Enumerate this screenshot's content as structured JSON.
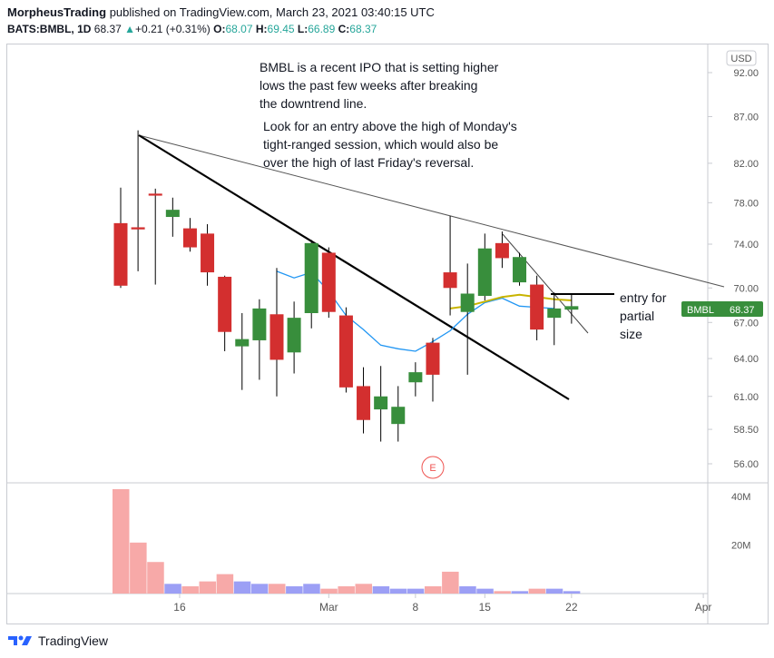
{
  "header": {
    "author": "MorpheusTrading",
    "published_text": "published on TradingView.com, March 23, 2021 03:40:15 UTC",
    "symbol": "BATS:BMBL, 1D",
    "last": "68.37",
    "change_arrow": "▲",
    "change": "+0.21 (+0.31%)",
    "o_label": "O:",
    "o_value": "68.07",
    "h_label": "H:",
    "h_value": "69.45",
    "l_label": "L:",
    "l_value": "66.89",
    "c_label": "C:",
    "c_value": "68.37"
  },
  "footer": {
    "brand": "TradingView"
  },
  "colors": {
    "up": "#388e3c",
    "down": "#d32f2f",
    "vol_up": "#9c9ff5",
    "vol_down": "#f7a9a8",
    "ma_fast": "#2196f3",
    "ma_slow": "#c8b400",
    "price_tag": "#388e3c"
  },
  "annotations": {
    "note1": [
      "BMBL is a recent IPO that is setting higher",
      "lows the past few weeks after breaking",
      "the downtrend line."
    ],
    "note2": [
      "Look for an entry above the high of Monday's",
      "tight-ranged session, which would also be",
      "over the high of last Friday's reversal."
    ],
    "entry": [
      "entry for",
      "partial",
      "size"
    ],
    "earnings_marker": "E"
  },
  "chart_data": {
    "type": "candlestick",
    "currency": "USD",
    "price_axis_ticks": [
      "92.00",
      "87.00",
      "82.00",
      "78.00",
      "74.00",
      "70.00",
      "67.00",
      "64.00",
      "61.00",
      "58.50",
      "56.00"
    ],
    "volume_axis_ticks": [
      "40M",
      "20M"
    ],
    "x_tick_labels": [
      "16",
      "Mar",
      "8",
      "15",
      "22",
      "Apr"
    ],
    "last_price_label": "BMBL",
    "last_price": "68.37",
    "candles": [
      {
        "date": "2021-02-11",
        "o": 76.0,
        "h": 79.5,
        "l": 70.0,
        "c": 70.2,
        "v": 43
      },
      {
        "date": "2021-02-12",
        "o": 75.6,
        "h": 85.5,
        "l": 71.5,
        "c": 75.4,
        "v": 21
      },
      {
        "date": "2021-02-16",
        "o": 78.9,
        "h": 79.4,
        "l": 70.3,
        "c": 78.7,
        "v": 13
      },
      {
        "date": "2021-02-17",
        "o": 76.6,
        "h": 78.5,
        "l": 74.7,
        "c": 77.3,
        "v": 4
      },
      {
        "date": "2021-02-18",
        "o": 75.5,
        "h": 76.5,
        "l": 73.3,
        "c": 73.7,
        "v": 3
      },
      {
        "date": "2021-02-19",
        "o": 75.0,
        "h": 75.9,
        "l": 70.2,
        "c": 71.4,
        "v": 5
      },
      {
        "date": "2021-02-22",
        "o": 71.0,
        "h": 71.1,
        "l": 64.6,
        "c": 66.2,
        "v": 8
      },
      {
        "date": "2021-02-23",
        "o": 65.0,
        "h": 67.8,
        "l": 61.5,
        "c": 65.6,
        "v": 5
      },
      {
        "date": "2021-02-24",
        "o": 65.5,
        "h": 69.0,
        "l": 62.3,
        "c": 68.2,
        "v": 4
      },
      {
        "date": "2021-02-25",
        "o": 67.7,
        "h": 71.8,
        "l": 61.0,
        "c": 63.9,
        "v": 4
      },
      {
        "date": "2021-02-26",
        "o": 64.5,
        "h": 68.8,
        "l": 62.8,
        "c": 67.4,
        "v": 3
      },
      {
        "date": "2021-03-01",
        "o": 67.8,
        "h": 74.4,
        "l": 66.5,
        "c": 74.1,
        "v": 4
      },
      {
        "date": "2021-03-02",
        "o": 73.2,
        "h": 73.7,
        "l": 67.4,
        "c": 67.9,
        "v": 2
      },
      {
        "date": "2021-03-03",
        "o": 67.6,
        "h": 68.3,
        "l": 61.3,
        "c": 61.7,
        "v": 3
      },
      {
        "date": "2021-03-04",
        "o": 61.8,
        "h": 63.3,
        "l": 58.2,
        "c": 59.2,
        "v": 4
      },
      {
        "date": "2021-03-05",
        "o": 60.0,
        "h": 63.4,
        "l": 57.6,
        "c": 61.0,
        "v": 3
      },
      {
        "date": "2021-03-08",
        "o": 58.9,
        "h": 61.8,
        "l": 57.6,
        "c": 60.2,
        "v": 2
      },
      {
        "date": "2021-03-09",
        "o": 62.1,
        "h": 63.7,
        "l": 61.0,
        "c": 62.9,
        "v": 2
      },
      {
        "date": "2021-03-10",
        "o": 65.3,
        "h": 65.7,
        "l": 60.6,
        "c": 62.7,
        "v": 3
      },
      {
        "date": "2021-03-11",
        "o": 71.4,
        "h": 76.7,
        "l": 67.6,
        "c": 70.0,
        "v": 9
      },
      {
        "date": "2021-03-12",
        "o": 67.9,
        "h": 72.2,
        "l": 62.7,
        "c": 69.5,
        "v": 3
      },
      {
        "date": "2021-03-15",
        "o": 69.3,
        "h": 75.0,
        "l": 68.9,
        "c": 73.6,
        "v": 2
      },
      {
        "date": "2021-03-16",
        "o": 74.1,
        "h": 75.2,
        "l": 71.8,
        "c": 72.7,
        "v": 1
      },
      {
        "date": "2021-03-17",
        "o": 70.5,
        "h": 73.2,
        "l": 70.2,
        "c": 72.8,
        "v": 1
      },
      {
        "date": "2021-03-18",
        "o": 70.3,
        "h": 71.1,
        "l": 65.5,
        "c": 66.4,
        "v": 2
      },
      {
        "date": "2021-03-19",
        "o": 67.4,
        "h": 69.6,
        "l": 65.1,
        "c": 68.2,
        "v": 2
      },
      {
        "date": "2021-03-22",
        "o": 68.1,
        "h": 69.5,
        "l": 66.9,
        "c": 68.4,
        "v": 1
      }
    ],
    "ma_fast_start_index": 9,
    "ma_fast": [
      71.5,
      70.9,
      71.4,
      69.7,
      67.6,
      66.4,
      65.1,
      64.8,
      64.6,
      65.4,
      66.3,
      67.7,
      68.7,
      69.1,
      68.4,
      68.3,
      68.2
    ],
    "ma_slow_start_index": 19,
    "ma_slow": [
      68.2,
      68.4,
      68.8,
      69.2,
      69.4,
      69.2,
      69.0,
      68.9
    ]
  }
}
